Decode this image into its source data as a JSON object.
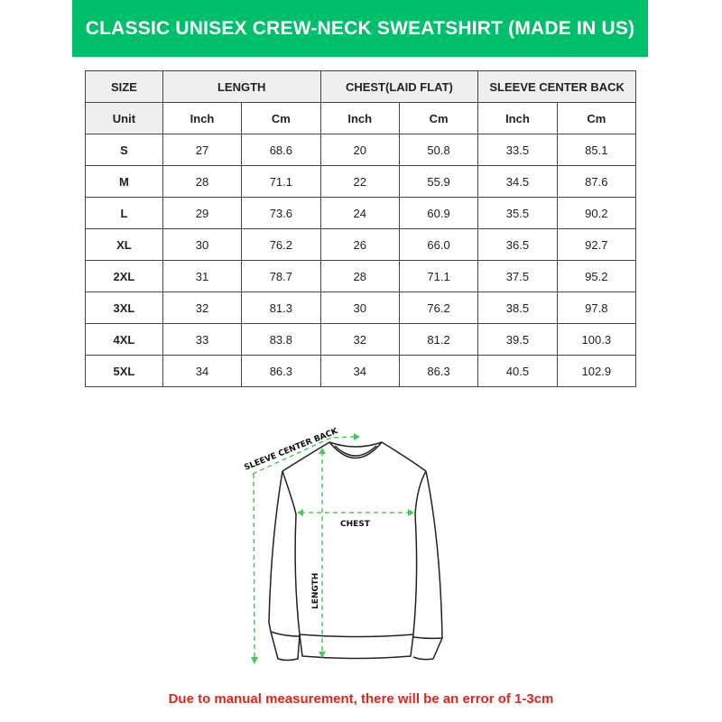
{
  "title": "CLASSIC UNISEX CREW-NECK SWEATSHIRT (MADE IN US)",
  "colors": {
    "banner": "#00bf6a",
    "dash": "#4cc85a",
    "note": "#e1251b"
  },
  "table": {
    "headers": [
      "SIZE",
      "LENGTH",
      "CHEST(LAID FLAT)",
      "SLEEVE CENTER BACK"
    ],
    "units": [
      "Unit",
      "Inch",
      "Cm",
      "Inch",
      "Cm",
      "Inch",
      "Cm"
    ],
    "rows": [
      [
        "S",
        "27",
        "68.6",
        "20",
        "50.8",
        "33.5",
        "85.1"
      ],
      [
        "M",
        "28",
        "71.1",
        "22",
        "55.9",
        "34.5",
        "87.6"
      ],
      [
        "L",
        "29",
        "73.6",
        "24",
        "60.9",
        "35.5",
        "90.2"
      ],
      [
        "XL",
        "30",
        "76.2",
        "26",
        "66.0",
        "36.5",
        "92.7"
      ],
      [
        "2XL",
        "31",
        "78.7",
        "28",
        "71.1",
        "37.5",
        "95.2"
      ],
      [
        "3XL",
        "32",
        "81.3",
        "30",
        "76.2",
        "38.5",
        "97.8"
      ],
      [
        "4XL",
        "33",
        "83.8",
        "32",
        "81.2",
        "39.5",
        "100.3"
      ],
      [
        "5XL",
        "34",
        "86.3",
        "34",
        "86.3",
        "40.5",
        "102.9"
      ]
    ]
  },
  "diagram": {
    "sleeve_label": "SLEEVE CENTER BACK",
    "chest_label": "CHEST",
    "length_label": "LENGTH"
  },
  "note": "Due to manual measurement, there will be an error of 1-3cm"
}
